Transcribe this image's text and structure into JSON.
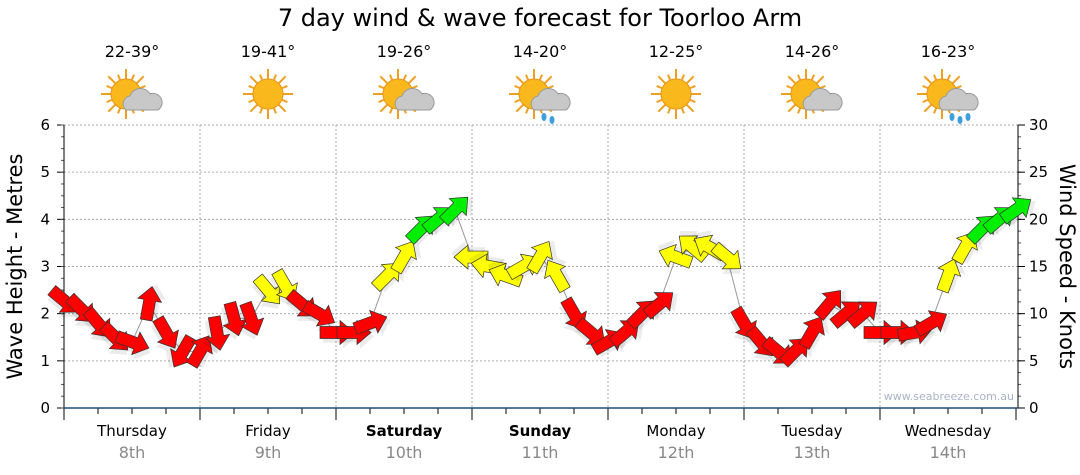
{
  "title": "7 day wind & wave forecast for Toorloo Arm",
  "days": [
    {
      "name": "Thursday",
      "date": "8th",
      "temp": "22-39°",
      "icon": "partly-cloudy",
      "bold": false
    },
    {
      "name": "Friday",
      "date": "9th",
      "temp": "19-41°",
      "icon": "sunny",
      "bold": false
    },
    {
      "name": "Saturday",
      "date": "10th",
      "temp": "19-26°",
      "icon": "partly-cloudy",
      "bold": true
    },
    {
      "name": "Sunday",
      "date": "11th",
      "temp": "14-20°",
      "icon": "showers",
      "bold": true
    },
    {
      "name": "Monday",
      "date": "12th",
      "temp": "12-25°",
      "icon": "sunny",
      "bold": false
    },
    {
      "name": "Tuesday",
      "date": "13th",
      "temp": "14-26°",
      "icon": "partly-cloudy",
      "bold": false
    },
    {
      "name": "Wednesday",
      "date": "14th",
      "temp": "16-23°",
      "icon": "rain",
      "bold": false
    }
  ],
  "watermark": "www.seabreeze.com.au",
  "chart_data": {
    "type": "scatter",
    "title": "7 day wind & wave forecast for Toorloo Arm",
    "ylabel_left": "Wave Height - Metres",
    "ylabel_right": "Wind Speed - Knots",
    "ylim_left": [
      0,
      6
    ],
    "yticks_left": [
      "0",
      "1",
      "2",
      "3",
      "4",
      "5",
      "6"
    ],
    "ylim_right": [
      0,
      30
    ],
    "yticks_right": [
      "0",
      "5",
      "10",
      "15",
      "20",
      "25",
      "30"
    ],
    "grid": true,
    "colors": {
      "low": "#ff0000",
      "mid": "#ffff00",
      "high": "#00ee00"
    },
    "thresholds_knots": [
      12,
      18
    ],
    "x_step_hours": 3,
    "wind_knots": [
      11.4,
      10.5,
      9,
      7.5,
      7,
      11,
      8,
      6,
      6,
      8,
      9.5,
      9.5,
      12.5,
      13,
      11,
      10,
      8,
      8,
      9,
      14,
      16,
      19,
      20,
      21,
      16,
      15,
      14,
      15,
      16,
      14,
      10,
      8,
      7,
      8,
      10,
      11,
      16,
      17,
      17,
      16,
      9,
      7,
      6,
      6,
      8,
      11,
      10,
      10,
      8,
      8,
      8,
      9,
      14,
      17,
      19,
      20,
      21
    ],
    "wind_direction_deg": [
      -40,
      -45,
      -50,
      -45,
      -20,
      80,
      -60,
      -120,
      60,
      -80,
      -75,
      -70,
      -50,
      -60,
      -40,
      -30,
      0,
      0,
      20,
      45,
      60,
      45,
      40,
      45,
      180,
      170,
      160,
      30,
      60,
      120,
      -60,
      -40,
      30,
      40,
      45,
      40,
      160,
      140,
      150,
      -40,
      -60,
      -50,
      -40,
      45,
      60,
      50,
      40,
      40,
      0,
      0,
      10,
      30,
      70,
      60,
      45,
      40,
      35
    ]
  }
}
